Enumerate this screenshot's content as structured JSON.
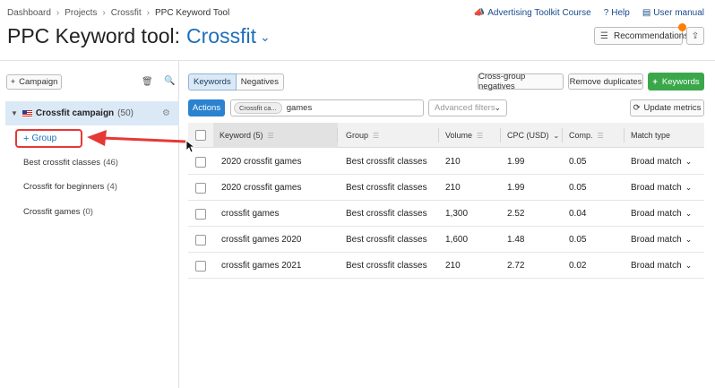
{
  "breadcrumbs": [
    "Dashboard",
    "Projects",
    "Crossfit",
    "PPC Keyword Tool"
  ],
  "toplinks": {
    "course": "Advertising Toolkit Course",
    "help": "Help",
    "manual": "User manual"
  },
  "title": {
    "tool": "PPC Keyword tool:",
    "project": "Crossfit"
  },
  "header_buttons": {
    "recommendations": "Recommendations"
  },
  "left": {
    "campaign_button": "Campaign",
    "campaign": {
      "name": "Crossfit campaign",
      "count": "(50)"
    },
    "group_button": "Group",
    "groups": [
      {
        "name": "Best crossfit classes",
        "count": "(46)"
      },
      {
        "name": "Crossfit for beginners",
        "count": "(4)"
      },
      {
        "name": "Crossfit games",
        "count": "(0)"
      }
    ]
  },
  "toolbar": {
    "tab_keywords": "Keywords",
    "tab_negatives": "Negatives",
    "cross_group": "Cross-group negatives",
    "remove_dup": "Remove duplicates",
    "add_keywords": "Keywords",
    "actions": "Actions",
    "filter_chip": "Crossfit ca...",
    "filter_value": "games",
    "advanced": "Advanced filters",
    "update": "Update metrics"
  },
  "table": {
    "headers": {
      "keyword": "Keyword (5)",
      "group": "Group",
      "volume": "Volume",
      "cpc": "CPC (USD)",
      "comp": "Comp.",
      "match": "Match type"
    },
    "rows": [
      {
        "keyword": "2020 crossfit games",
        "group": "Best crossfit classes",
        "volume": "210",
        "cpc": "1.99",
        "comp": "0.05",
        "match": "Broad match"
      },
      {
        "keyword": "2020 crossfit games",
        "group": "Best crossfit classes",
        "volume": "210",
        "cpc": "1.99",
        "comp": "0.05",
        "match": "Broad match"
      },
      {
        "keyword": "crossfit games",
        "group": "Best crossfit classes",
        "volume": "1,300",
        "cpc": "2.52",
        "comp": "0.04",
        "match": "Broad match"
      },
      {
        "keyword": "crossfit games 2020",
        "group": "Best crossfit classes",
        "volume": "1,600",
        "cpc": "1.48",
        "comp": "0.05",
        "match": "Broad match"
      },
      {
        "keyword": "crossfit games 2021",
        "group": "Best crossfit classes",
        "volume": "210",
        "cpc": "2.72",
        "comp": "0.02",
        "match": "Broad match"
      }
    ]
  },
  "colors": {
    "accent": "#1d6fba",
    "green": "#3aa84a",
    "highlight_red": "#e53935",
    "notification": "#ff7d00"
  }
}
